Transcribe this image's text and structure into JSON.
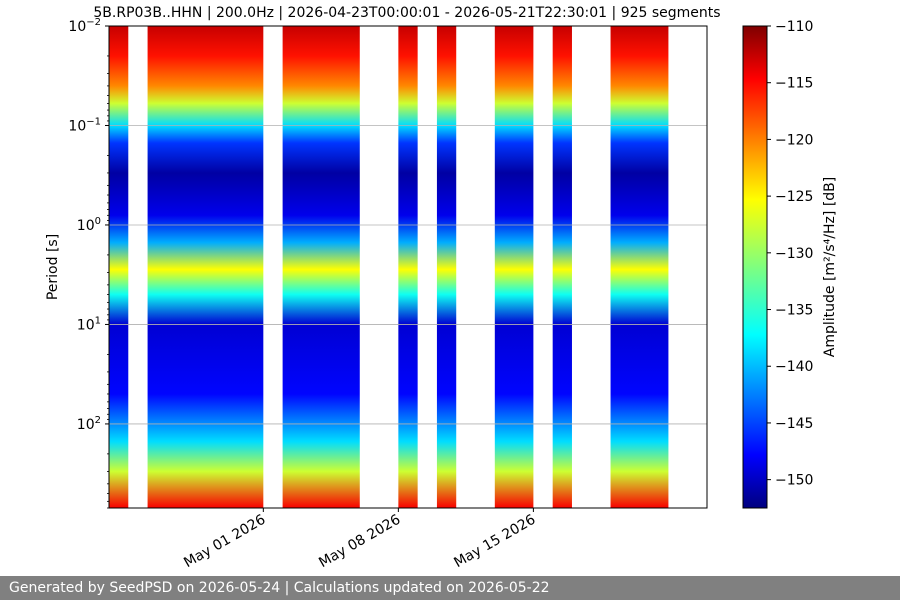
{
  "chart_data": {
    "type": "heatmap",
    "title": "5B.RP03B..HHN | 200.0Hz | 2026-04-23T00:00:01 - 2026-05-21T22:30:01 | 925 segments",
    "ylabel": "Period [s]",
    "y_scale": "log",
    "y_inverted": true,
    "ylim": [
      0.01,
      700
    ],
    "y_ticks": [
      {
        "value": 0.01,
        "base": "10",
        "exp": "−2"
      },
      {
        "value": 0.1,
        "base": "10",
        "exp": "−1"
      },
      {
        "value": 1,
        "base": "10",
        "exp": "0"
      },
      {
        "value": 10,
        "base": "10",
        "exp": "1"
      },
      {
        "value": 100,
        "base": "10",
        "exp": "2"
      }
    ],
    "xlim": [
      "2026-04-23",
      "2026-05-24"
    ],
    "x_ticks": [
      {
        "date": "2026-05-01",
        "label": "May 01 2026"
      },
      {
        "date": "2026-05-08",
        "label": "May 08 2026"
      },
      {
        "date": "2026-05-15",
        "label": "May 15 2026"
      }
    ],
    "data_segments": [
      [
        "2026-04-23",
        "2026-04-24"
      ],
      [
        "2026-04-25",
        "2026-05-01"
      ],
      [
        "2026-05-02",
        "2026-05-06"
      ],
      [
        "2026-05-08",
        "2026-05-09"
      ],
      [
        "2026-05-10",
        "2026-05-11"
      ],
      [
        "2026-05-13",
        "2026-05-15"
      ],
      [
        "2026-05-16",
        "2026-05-17"
      ],
      [
        "2026-05-19",
        "2026-05-22"
      ]
    ],
    "amplitude_profile": [
      {
        "period": 0.01,
        "amplitude_db": -113
      },
      {
        "period": 0.02,
        "amplitude_db": -116
      },
      {
        "period": 0.04,
        "amplitude_db": -121
      },
      {
        "period": 0.06,
        "amplitude_db": -128
      },
      {
        "period": 0.1,
        "amplitude_db": -138
      },
      {
        "period": 0.15,
        "amplitude_db": -145
      },
      {
        "period": 0.3,
        "amplitude_db": -151
      },
      {
        "period": 0.8,
        "amplitude_db": -148
      },
      {
        "period": 1.5,
        "amplitude_db": -140
      },
      {
        "period": 2.8,
        "amplitude_db": -126
      },
      {
        "period": 5,
        "amplitude_db": -136
      },
      {
        "period": 10,
        "amplitude_db": -149
      },
      {
        "period": 50,
        "amplitude_db": -147
      },
      {
        "period": 150,
        "amplitude_db": -138
      },
      {
        "period": 300,
        "amplitude_db": -128
      },
      {
        "period": 700,
        "amplitude_db": -115
      }
    ],
    "colorbar": {
      "label": "Amplitude [m²/s⁴/Hz] [dB]",
      "min": -152.5,
      "max": -110,
      "ticks": [
        -110,
        -115,
        -120,
        -125,
        -130,
        -135,
        -140,
        -145,
        -150
      ],
      "colormap": "jet"
    },
    "grid": true
  },
  "footer": {
    "text": "Generated by SeedPSD on 2026-05-24 | Calculations updated on 2026-05-22"
  }
}
